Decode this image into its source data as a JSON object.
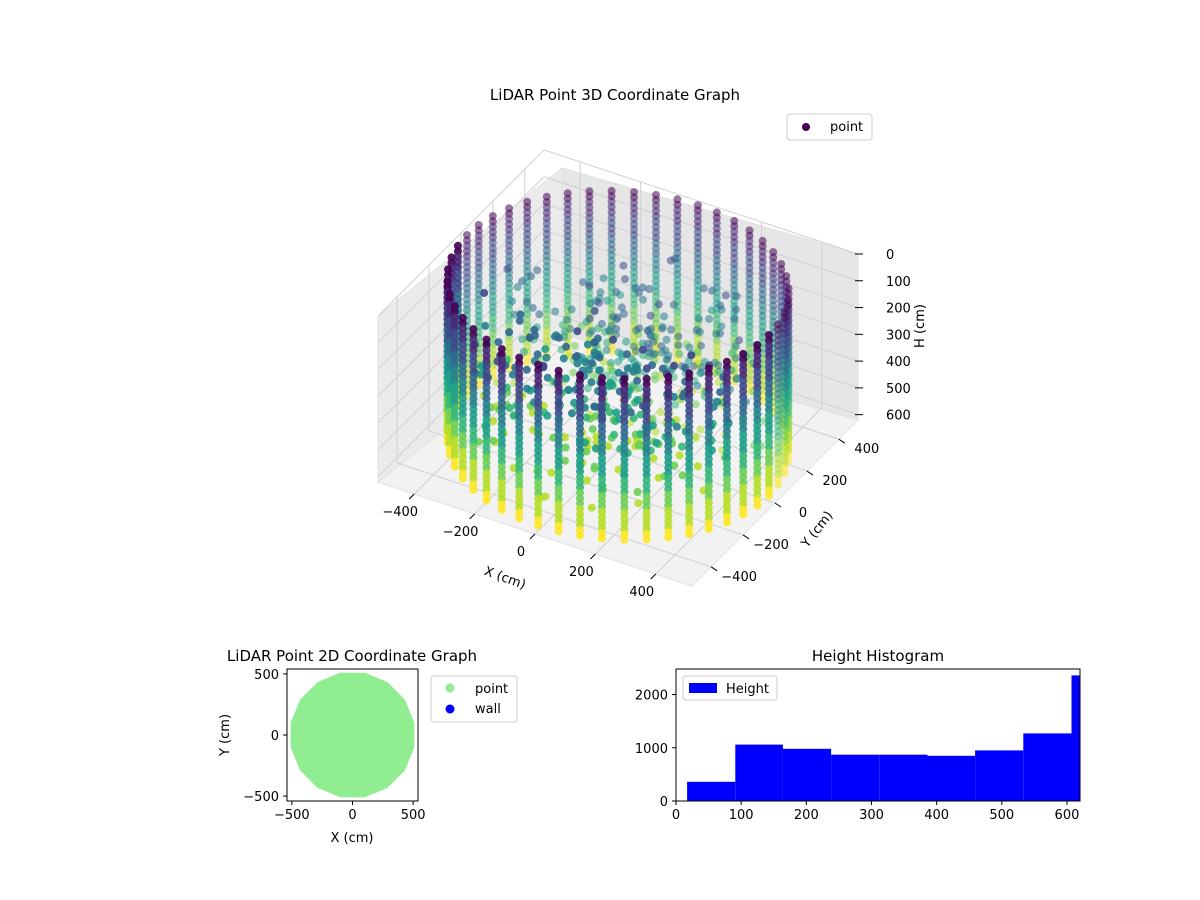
{
  "colors": {
    "viridis": [
      "#440154",
      "#482878",
      "#3e4989",
      "#31688e",
      "#26828e",
      "#1f9e89",
      "#35b779",
      "#6ece58",
      "#b5de2b",
      "#fde725"
    ],
    "wall_fill": "#90ee90",
    "wall_marker": "#0000ff",
    "hist_bar": "#0000ff"
  },
  "chart_data": [
    {
      "type": "scatter3d",
      "title": "LiDAR Point 3D Coordinate Graph",
      "xlabel": "X (cm)",
      "ylabel": "Y (cm)",
      "zlabel": "H (cm)",
      "x_ticks": [
        "−400",
        "−200",
        "0",
        "200",
        "400"
      ],
      "y_ticks": [
        "−400",
        "−200",
        "0",
        "200",
        "400"
      ],
      "z_ticks": [
        "0",
        "100",
        "200",
        "300",
        "400",
        "500",
        "600"
      ],
      "xlim": [
        -520,
        520
      ],
      "ylim": [
        -520,
        520
      ],
      "zlim": [
        0,
        620
      ],
      "z_inverted": true,
      "legend": [
        "point"
      ],
      "legend_position": "top-right",
      "grid": true,
      "wall_radius": 500,
      "wall_height": 600
    },
    {
      "type": "scatter",
      "title": "LiDAR Point 2D Coordinate Graph",
      "xlabel": "X (cm)",
      "ylabel": "Y (cm)",
      "x_ticks": [
        "−500",
        "0",
        "500"
      ],
      "y_ticks": [
        "500",
        "0",
        "−500"
      ],
      "xlim": [
        -540,
        540
      ],
      "ylim": [
        -540,
        540
      ],
      "series": [
        {
          "name": "point"
        },
        {
          "name": "wall"
        }
      ],
      "legend_position": "outside right",
      "point_region_radius": 520
    },
    {
      "type": "bar",
      "title": "Height Histogram",
      "xlabel": "",
      "ylabel": "",
      "x_ticks": [
        "0",
        "100",
        "200",
        "300",
        "400",
        "500",
        "600"
      ],
      "y_ticks": [
        "0",
        "1000",
        "2000"
      ],
      "xlim": [
        0,
        620
      ],
      "ylim": [
        0,
        2480
      ],
      "bin_edges": [
        17,
        91,
        164,
        238,
        312,
        386,
        459,
        533,
        607,
        620
      ],
      "values": [
        360,
        1060,
        980,
        870,
        870,
        850,
        950,
        1270,
        2360
      ],
      "series": [
        {
          "name": "Height"
        }
      ],
      "legend_position": "top-left",
      "grid": false
    }
  ]
}
